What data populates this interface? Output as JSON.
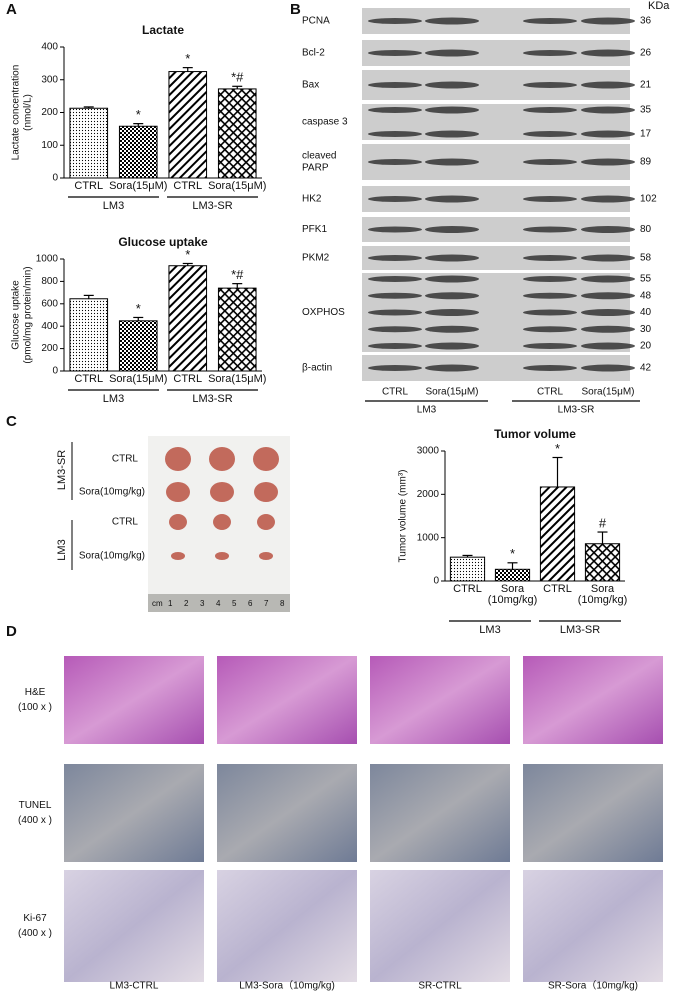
{
  "chart_data": [
    {
      "type": "bar",
      "title": "Lactate",
      "ylabel": [
        "Lactate concentration",
        "(nmol/L)"
      ],
      "categories": [
        "CTRL",
        "Sora(15μM)",
        "CTRL",
        "Sora(15μM)"
      ],
      "groups": [
        "LM3",
        "LM3-SR"
      ],
      "values": [
        213,
        158,
        325,
        272
      ],
      "errors": [
        4,
        8,
        12,
        8
      ],
      "annotations": [
        null,
        "*",
        "*",
        "*#"
      ],
      "patterns": [
        "dots",
        "checker",
        "hatch",
        "cross"
      ],
      "color": "#000000",
      "ylim": [
        0,
        400
      ],
      "yticks": [
        0,
        100,
        200,
        300,
        400
      ]
    },
    {
      "type": "bar",
      "title": "Glucose uptake",
      "ylabel": [
        "Glucose uptake",
        "(pmol/mg protein/min)"
      ],
      "categories": [
        "CTRL",
        "Sora(15μM)",
        "CTRL",
        "Sora(15μM)"
      ],
      "groups": [
        "LM3",
        "LM3-SR"
      ],
      "values": [
        645,
        448,
        940,
        740
      ],
      "errors": [
        30,
        30,
        20,
        40
      ],
      "annotations": [
        null,
        "*",
        "*",
        "*#"
      ],
      "patterns": [
        "dots",
        "checker",
        "hatch",
        "cross"
      ],
      "color": "#000000",
      "ylim": [
        0,
        1000
      ],
      "yticks": [
        0,
        200,
        400,
        600,
        800,
        1000
      ]
    },
    {
      "type": "bar",
      "title": "Tumor volume",
      "ylabel": [
        "Tumor volume (mm³)"
      ],
      "categories": [
        [
          "CTRL"
        ],
        [
          "Sora",
          "(10mg/kg)"
        ],
        [
          "CTRL"
        ],
        [
          "Sora",
          "(10mg/kg)"
        ]
      ],
      "groups": [
        "LM3",
        "LM3-SR"
      ],
      "values": [
        550,
        270,
        2170,
        860
      ],
      "errors": [
        40,
        150,
        680,
        270
      ],
      "annotations": [
        null,
        "*",
        "*",
        "#"
      ],
      "patterns": [
        "dots",
        "checker",
        "hatch",
        "cross"
      ],
      "color": "#000000",
      "ylim": [
        0,
        3000
      ],
      "yticks": [
        0,
        1000,
        2000,
        3000
      ]
    }
  ],
  "panels": [
    "A",
    "B",
    "C",
    "D"
  ],
  "blot": {
    "unit": "KDa",
    "rows": [
      {
        "label": [
          "PCNA"
        ],
        "kda": [
          "36"
        ]
      },
      {
        "label": [
          "Bcl-2"
        ],
        "kda": [
          "26"
        ]
      },
      {
        "label": [
          "Bax"
        ],
        "kda": [
          "21"
        ]
      },
      {
        "label": [
          "caspase 3"
        ],
        "kda": [
          "35",
          "17"
        ]
      },
      {
        "label": [
          "cleaved",
          "PARP"
        ],
        "kda": [
          "89"
        ]
      },
      {
        "label": [
          "HK2"
        ],
        "kda": [
          "102"
        ]
      },
      {
        "label": [
          "PFK1"
        ],
        "kda": [
          "80"
        ]
      },
      {
        "label": [
          "PKM2"
        ],
        "kda": [
          "58"
        ]
      },
      {
        "label": [
          "OXPHOS"
        ],
        "kda": [
          "55",
          "48",
          "40",
          "30",
          "20"
        ]
      },
      {
        "label": [
          "β-actin"
        ],
        "kda": [
          "42"
        ]
      }
    ],
    "lanes": [
      "CTRL",
      "Sora(15μM)",
      "CTRL",
      "Sora(15μM)"
    ],
    "groups": [
      "LM3",
      "LM3-SR"
    ]
  },
  "photo": {
    "groups": [
      "LM3-SR",
      "LM3"
    ],
    "rows": [
      "CTRL",
      "Sora(10mg/kg)",
      "CTRL",
      "Sora(10mg/kg)"
    ],
    "ruler": [
      "cm",
      "1",
      "2",
      "3",
      "4",
      "5",
      "6",
      "7",
      "8"
    ]
  },
  "histology": {
    "rows": [
      [
        "H&E",
        "(100 x )"
      ],
      [
        "TUNEL",
        "(400 x )"
      ],
      [
        "Ki-67",
        "(400 x )"
      ]
    ],
    "columns": [
      "LM3-CTRL",
      "LM3-Sora（10mg/kg)",
      "SR-CTRL",
      "SR-Sora（10mg/kg)"
    ]
  }
}
